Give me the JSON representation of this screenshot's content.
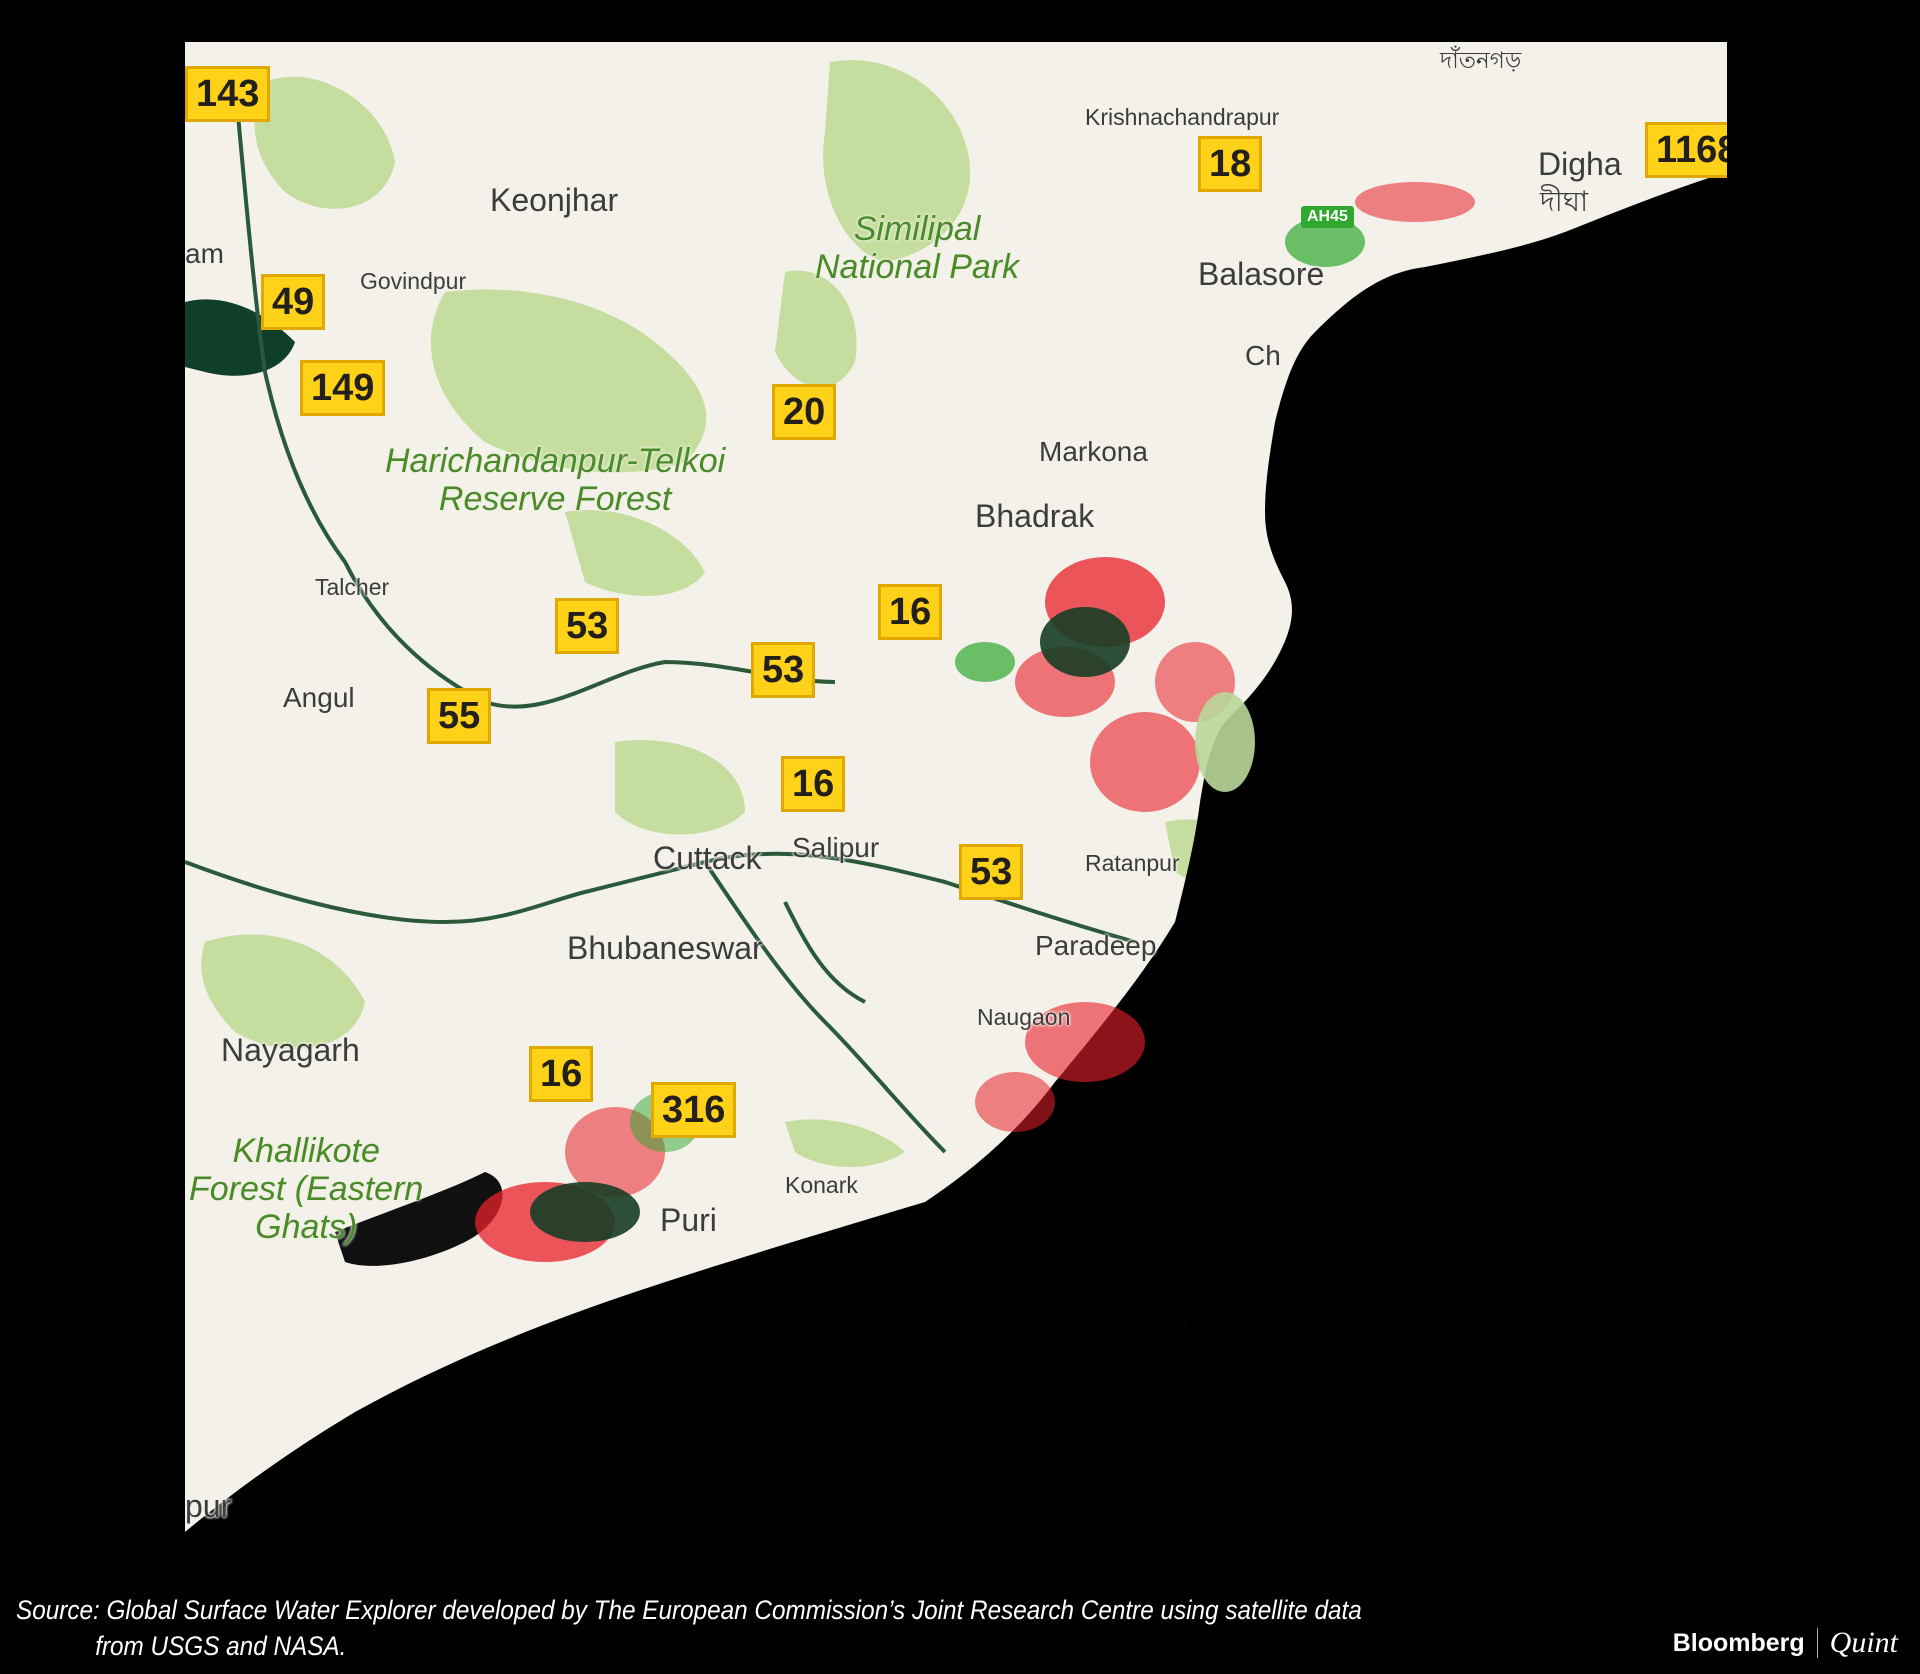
{
  "map": {
    "places": [
      {
        "name": "Keonjhar"
      },
      {
        "name": "Govindpur"
      },
      {
        "name": "Krishnachandrapur"
      },
      {
        "name": "Digha"
      },
      {
        "name": "দীঘা"
      },
      {
        "name": "Balasore"
      },
      {
        "name": "Markona"
      },
      {
        "name": "Bhadrak"
      },
      {
        "name": "Talcher"
      },
      {
        "name": "Angul"
      },
      {
        "name": "Cuttack"
      },
      {
        "name": "Salipur"
      },
      {
        "name": "Bhubaneswar"
      },
      {
        "name": "Nayagarh"
      },
      {
        "name": "Konark"
      },
      {
        "name": "Puri"
      },
      {
        "name": "Ratanpur"
      },
      {
        "name": "Paradeep"
      },
      {
        "name": "Naugaon"
      },
      {
        "name": "দাঁতনগড়"
      },
      {
        "name": "am"
      },
      {
        "name": "Ch"
      },
      {
        "name": "pur"
      },
      {
        "name": "AH45"
      }
    ],
    "parks": [
      {
        "line1": "Similipal",
        "line2": "National Park"
      },
      {
        "line1": "Harichandanpur-Telkoi",
        "line2": "Reserve Forest"
      },
      {
        "line1": "Khallikote",
        "line2": "Forest (Eastern",
        "line3": "Ghats)"
      }
    ],
    "badges": [
      "143",
      "49",
      "149",
      "20",
      "18",
      "1168",
      "53",
      "16",
      "53",
      "55",
      "16",
      "53",
      "16",
      "316"
    ],
    "colors": {
      "land": "#f4f1ea",
      "forest": "#c5dea0",
      "sea": "#000000",
      "badge": "#ffd21a",
      "flood_red": "#e8202a",
      "flood_green": "#2ea82e",
      "permanent_water": "#0f3f2a"
    }
  },
  "footer": {
    "source_line1": "Source: Global Surface Water Explorer developed by The European Commission’s Joint Research Centre using satellite data",
    "source_line2": "from USGS and NASA.",
    "brand_left": "Bloomberg",
    "brand_right": "Quint"
  }
}
